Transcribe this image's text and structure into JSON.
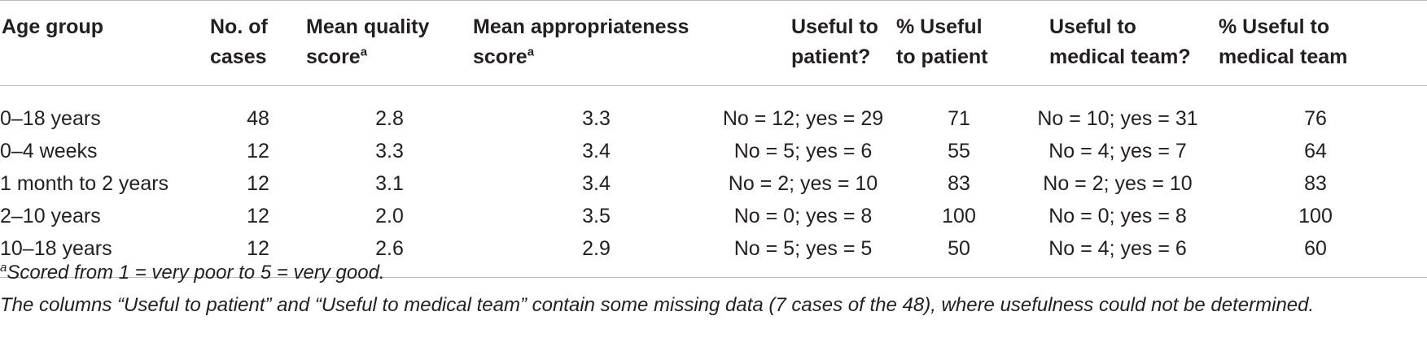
{
  "table": {
    "headers": [
      {
        "line1": "Age group",
        "line2": "",
        "sup": ""
      },
      {
        "line1": "No. of",
        "line2": "cases",
        "sup": ""
      },
      {
        "line1": "Mean quality",
        "line2": "score",
        "sup": "a"
      },
      {
        "line1": "Mean appropriateness",
        "line2": "score",
        "sup": "a"
      },
      {
        "line1": "Useful to",
        "line2": "patient?",
        "sup": ""
      },
      {
        "line1": "% Useful",
        "line2": "to patient",
        "sup": ""
      },
      {
        "line1": "Useful to",
        "line2": "medical team?",
        "sup": ""
      },
      {
        "line1": "% Useful to",
        "line2": "medical team",
        "sup": ""
      }
    ],
    "rows": [
      [
        "0–18 years",
        "48",
        "2.8",
        "3.3",
        "No = 12; yes = 29",
        "71",
        "No = 10; yes = 31",
        "76"
      ],
      [
        "0–4 weeks",
        "12",
        "3.3",
        "3.4",
        "No = 5; yes = 6",
        "55",
        "No = 4; yes = 7",
        "64"
      ],
      [
        "1 month to 2 years",
        "12",
        "3.1",
        "3.4",
        "No = 2; yes = 10",
        "83",
        "No = 2; yes = 10",
        "83"
      ],
      [
        "2–10 years",
        "12",
        "2.0",
        "3.5",
        "No = 0; yes = 8",
        "100",
        "No = 0; yes = 8",
        "100"
      ],
      [
        "10–18 years",
        "12",
        "2.6",
        "2.9",
        "No = 5; yes = 5",
        "50",
        "No = 4; yes = 6",
        "60"
      ]
    ]
  },
  "footnotes": {
    "a_marker": "a",
    "a_text": "Scored from 1 = very poor to 5 = very good.",
    "note": "The columns “Useful to patient” and “Useful to medical team” contain some missing data (7 cases of the 48), where usefulness could not be determined."
  }
}
